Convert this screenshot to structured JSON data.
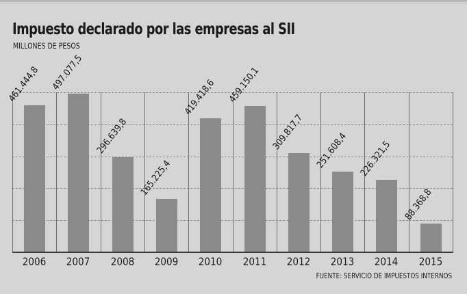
{
  "title": "Impuesto declarado por las empresas al SII",
  "subtitle": "MILLONES DE PESOS",
  "source": "FUENTE: SERVICIO DE IMPUESTOS INTERNOS",
  "colors": {
    "background": "#d5d5d5",
    "bar": "#8a8a8a",
    "text": "#161616",
    "grid": "#8c8c8c"
  },
  "labels": [
    "461.444,8",
    "497.077,5",
    "296.639,8",
    "165.225,4",
    "419.418,6",
    "459.150,1",
    "309.817,7",
    "251.608,4",
    "226.321,5",
    "88.368,8"
  ],
  "years": [
    "2006",
    "2007",
    "2008",
    "2009",
    "2010",
    "2011",
    "2012",
    "2013",
    "2014",
    "2015"
  ],
  "chart_data": {
    "type": "bar",
    "title": "Impuesto declarado por las empresas al SII",
    "subtitle": "MILLONES DE PESOS",
    "xlabel": "",
    "ylabel": "Millones de pesos",
    "categories": [
      "2006",
      "2007",
      "2008",
      "2009",
      "2010",
      "2011",
      "2012",
      "2013",
      "2014",
      "2015"
    ],
    "values": [
      461444.8,
      497077.5,
      296639.8,
      165225.4,
      419418.6,
      459150.1,
      309817.7,
      251608.4,
      226321.5,
      88368.8
    ],
    "data_labels": [
      "461.444,8",
      "497.077,5",
      "296.639,8",
      "165.225,4",
      "419.418,6",
      "459.150,1",
      "309.817,7",
      "251.608,4",
      "226.321,5",
      "88.368,8"
    ],
    "ylim": [
      0,
      500000
    ],
    "grid": true,
    "legend": null,
    "annotations": [
      "FUENTE: SERVICIO DE IMPUESTOS INTERNOS"
    ]
  }
}
